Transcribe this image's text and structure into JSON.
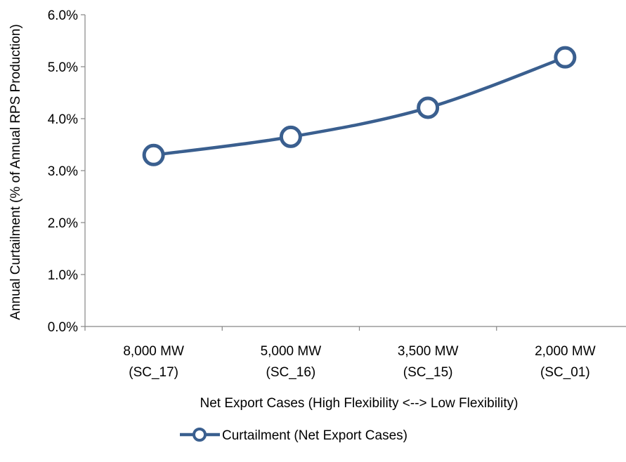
{
  "chart_data": {
    "type": "line",
    "title": "",
    "xlabel": "Net Export Cases (High Flexibility <--> Low Flexibility)",
    "ylabel": "Annual Curtailment (% of Annual RPS Production)",
    "categories": [
      [
        "8,000 MW",
        "(SC_17)"
      ],
      [
        "5,000 MW",
        "(SC_16)"
      ],
      [
        "3,500 MW",
        "(SC_15)"
      ],
      [
        "2,000 MW",
        "(SC_01)"
      ]
    ],
    "yticks": [
      "0.0%",
      "1.0%",
      "2.0%",
      "3.0%",
      "4.0%",
      "5.0%",
      "6.0%"
    ],
    "ylim": [
      0,
      6
    ],
    "series": [
      {
        "name": "Curtailment (Net Export Cases)",
        "values": [
          3.3,
          3.65,
          4.21,
          5.18
        ],
        "color": "#3A5F8F"
      }
    ],
    "grid": false,
    "legend_position": "bottom",
    "line_style": "smooth",
    "marker": "open-circle"
  }
}
